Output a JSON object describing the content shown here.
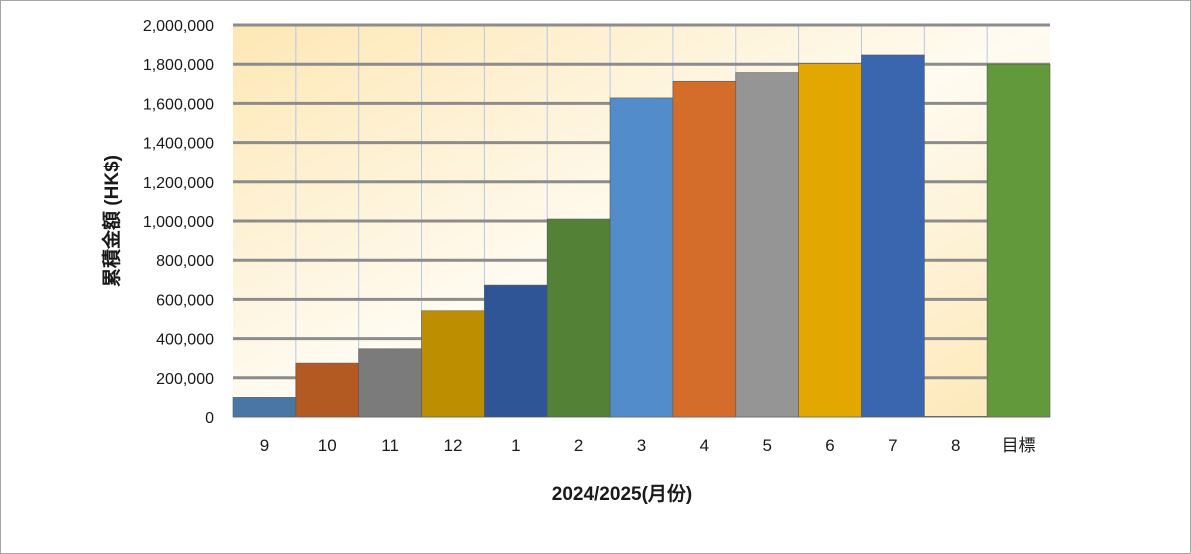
{
  "chart_data": {
    "type": "bar",
    "title": "",
    "xlabel": "2024/2025(月份)",
    "ylabel": "累積金額 (HK$)",
    "ylim": [
      0,
      2000000
    ],
    "y_ticks": [
      0,
      200000,
      400000,
      600000,
      800000,
      1000000,
      1200000,
      1400000,
      1600000,
      1800000,
      2000000
    ],
    "y_tick_labels": [
      "0",
      "200,000",
      "400,000",
      "600,000",
      "800,000",
      "1,000,000",
      "1,200,000",
      "1,400,000",
      "1,600,000",
      "1,800,000",
      "2,000,000"
    ],
    "categories": [
      "9",
      "10",
      "11",
      "12",
      "1",
      "2",
      "3",
      "4",
      "5",
      "6",
      "7",
      "8",
      "目標"
    ],
    "values": [
      100000,
      275000,
      348000,
      542000,
      673000,
      1010000,
      1628000,
      1713000,
      1757000,
      1803000,
      1847000,
      3000,
      1800000
    ],
    "bar_colors": [
      "#4a76a5",
      "#b35a22",
      "#7b7b7b",
      "#bd8f00",
      "#2f5597",
      "#538135",
      "#538ccb",
      "#d46d2a",
      "#959595",
      "#e2a700",
      "#3a66b0",
      "#d9d9d9",
      "#62993a"
    ],
    "grid": true,
    "legend": "none"
  }
}
